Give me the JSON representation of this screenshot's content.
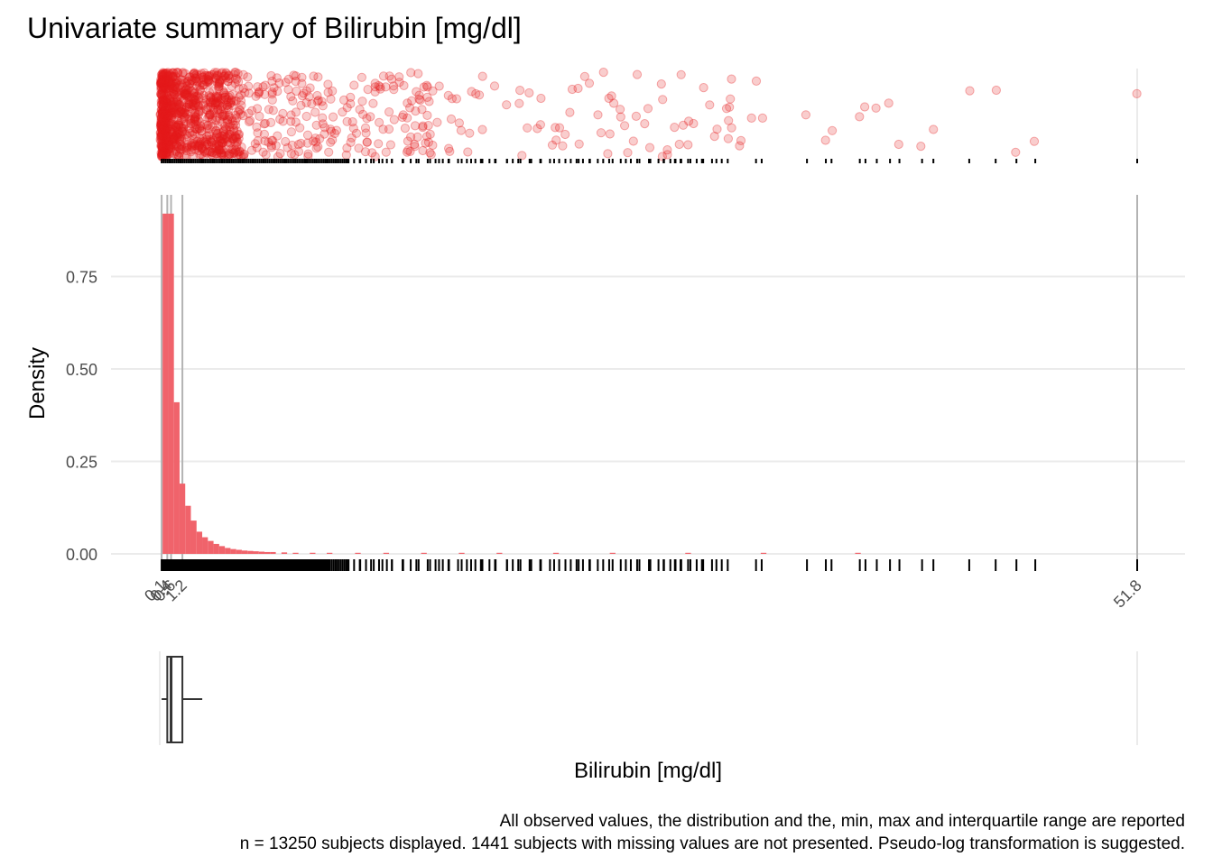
{
  "chart_data": {
    "type": "histogram",
    "title": "Univariate summary of Bilirubin [mg/dl]",
    "xlabel": "Bilirubin [mg/dl]",
    "ylabel": "Density",
    "y_ticks": [
      "0.00",
      "0.25",
      "0.50",
      "0.75"
    ],
    "ylim": [
      0,
      0.95
    ],
    "xlim": [
      0,
      51.8
    ],
    "x_tick_labels": [
      "0.1",
      "0.4",
      "0.6",
      "1.2",
      "51.8"
    ],
    "summary_lines": [
      0.1,
      0.4,
      0.6,
      1.2,
      51.8
    ],
    "summary": {
      "min": 0.1,
      "q1": 0.4,
      "median": 0.6,
      "q3": 1.2,
      "max": 51.8
    },
    "bin_width": 0.3,
    "bins": [
      {
        "x": 0.3,
        "density": 0.92
      },
      {
        "x": 0.6,
        "density": 0.92
      },
      {
        "x": 0.9,
        "density": 0.41
      },
      {
        "x": 1.2,
        "density": 0.19
      },
      {
        "x": 1.5,
        "density": 0.13
      },
      {
        "x": 1.8,
        "density": 0.09
      },
      {
        "x": 2.1,
        "density": 0.06
      },
      {
        "x": 2.4,
        "density": 0.045
      },
      {
        "x": 2.7,
        "density": 0.035
      },
      {
        "x": 3.0,
        "density": 0.027
      },
      {
        "x": 3.3,
        "density": 0.021
      },
      {
        "x": 3.6,
        "density": 0.016
      },
      {
        "x": 3.9,
        "density": 0.013
      },
      {
        "x": 4.2,
        "density": 0.011
      },
      {
        "x": 4.5,
        "density": 0.009
      },
      {
        "x": 4.8,
        "density": 0.008
      },
      {
        "x": 5.1,
        "density": 0.007
      },
      {
        "x": 5.4,
        "density": 0.006
      },
      {
        "x": 5.7,
        "density": 0.005
      },
      {
        "x": 6.0,
        "density": 0.005
      },
      {
        "x": 6.6,
        "density": 0.004
      },
      {
        "x": 7.2,
        "density": 0.003
      },
      {
        "x": 8.1,
        "density": 0.003
      },
      {
        "x": 9.0,
        "density": 0.002
      },
      {
        "x": 10.5,
        "density": 0.002
      },
      {
        "x": 12.0,
        "density": 0.0015
      },
      {
        "x": 14.0,
        "density": 0.001
      },
      {
        "x": 16.0,
        "density": 0.001
      },
      {
        "x": 18.0,
        "density": 0.0008
      },
      {
        "x": 21.0,
        "density": 0.0006
      },
      {
        "x": 24.0,
        "density": 0.0005
      },
      {
        "x": 28.0,
        "density": 0.0004
      },
      {
        "x": 32.0,
        "density": 0.0003
      },
      {
        "x": 37.0,
        "density": 0.0002
      }
    ],
    "sparse_observations": [
      0.5,
      1.1,
      1.7,
      2.3,
      2.9,
      3.6,
      4.2,
      4.9,
      5.5,
      6.1,
      6.7,
      7.2,
      7.8,
      8.3,
      8.9,
      9.4,
      10.0,
      10.6,
      11.2,
      11.8,
      12.3,
      12.9,
      13.6,
      14.2,
      14.8,
      15.3,
      16.0,
      16.5,
      17.1,
      17.8,
      18.4,
      19.0,
      19.6,
      20.2,
      20.9,
      21.5,
      22.2,
      22.8,
      23.5,
      24.0,
      24.7,
      25.3,
      26.0,
      26.7,
      27.3,
      27.6,
      28.0,
      28.8,
      29.5,
      30.1,
      31.6,
      31.9,
      34.3,
      35.3,
      35.6,
      37.1,
      37.4,
      38.0,
      38.7,
      39.2,
      40.4,
      41.0,
      42.9,
      44.3,
      45.4,
      46.4,
      51.8
    ],
    "caption_line1": "All observed values, the distribution and the, min, max and interquartile range are reported",
    "caption_line2": "n = 13250 subjects displayed. 1441 subjects with missing values are not presented. Pseudo-log transformation is suggested.",
    "colors": {
      "points": "#e41a1c",
      "bars": "#f0636b",
      "rug": "#000000",
      "grid": "#ebebeb",
      "summary_line": "#b3b3b3",
      "text_axis": "#4d4d4d"
    }
  }
}
